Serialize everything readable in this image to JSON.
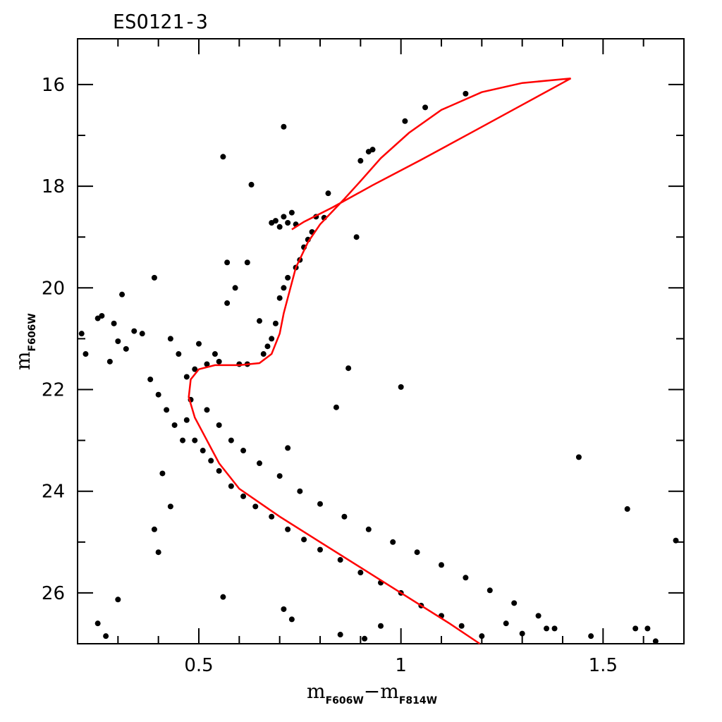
{
  "chart_data": {
    "type": "scatter",
    "title": "ESO121-3",
    "xlabel": {
      "main": "m",
      "sub1": "F606W",
      "sep": "−m",
      "sub2": "F814W"
    },
    "ylabel": {
      "main": "m",
      "sub": "F606W"
    },
    "xlim": [
      0.2,
      1.7
    ],
    "ylim": [
      27.0,
      15.1
    ],
    "y_inverted": true,
    "x_ticks": [
      0.5,
      1,
      1.5
    ],
    "x_tick_labels": [
      "0.5",
      "1",
      "1.5"
    ],
    "y_ticks": [
      16,
      18,
      20,
      22,
      24,
      26
    ],
    "y_tick_labels": [
      "16",
      "18",
      "20",
      "22",
      "24",
      "26"
    ],
    "grid": false,
    "legend": "none",
    "colors": {
      "points": "#000000",
      "isochrone": "#ff0000"
    },
    "series": [
      {
        "kind": "points",
        "points": [
          [
            1.16,
            16.18
          ],
          [
            1.06,
            16.45
          ],
          [
            1.01,
            16.72
          ],
          [
            0.71,
            16.83
          ],
          [
            0.56,
            17.42
          ],
          [
            0.93,
            17.28
          ],
          [
            0.92,
            17.32
          ],
          [
            0.9,
            17.5
          ],
          [
            0.63,
            17.97
          ],
          [
            0.82,
            18.14
          ],
          [
            0.73,
            18.52
          ],
          [
            0.71,
            18.6
          ],
          [
            0.69,
            18.68
          ],
          [
            0.72,
            18.72
          ],
          [
            0.74,
            18.75
          ],
          [
            0.7,
            18.8
          ],
          [
            0.68,
            18.72
          ],
          [
            0.79,
            18.6
          ],
          [
            0.81,
            18.62
          ],
          [
            0.78,
            18.9
          ],
          [
            0.77,
            19.05
          ],
          [
            0.76,
            19.2
          ],
          [
            0.75,
            19.45
          ],
          [
            0.74,
            19.6
          ],
          [
            0.72,
            19.8
          ],
          [
            0.71,
            20.0
          ],
          [
            0.7,
            20.2
          ],
          [
            0.89,
            19.0
          ],
          [
            0.57,
            19.5
          ],
          [
            0.62,
            19.5
          ],
          [
            0.59,
            20.0
          ],
          [
            0.57,
            20.3
          ],
          [
            0.39,
            19.8
          ],
          [
            0.31,
            20.13
          ],
          [
            0.65,
            20.65
          ],
          [
            0.69,
            20.7
          ],
          [
            0.68,
            21.0
          ],
          [
            0.67,
            21.15
          ],
          [
            0.66,
            21.3
          ],
          [
            0.62,
            21.5
          ],
          [
            0.6,
            21.5
          ],
          [
            0.55,
            21.45
          ],
          [
            0.52,
            21.5
          ],
          [
            0.49,
            21.6
          ],
          [
            0.47,
            21.75
          ],
          [
            0.21,
            20.9
          ],
          [
            0.22,
            21.3
          ],
          [
            0.25,
            20.6
          ],
          [
            0.28,
            21.45
          ],
          [
            0.32,
            21.2
          ],
          [
            0.36,
            20.9
          ],
          [
            0.29,
            20.7
          ],
          [
            0.26,
            20.55
          ],
          [
            0.34,
            20.85
          ],
          [
            0.3,
            21.05
          ],
          [
            0.38,
            21.8
          ],
          [
            0.4,
            22.1
          ],
          [
            0.42,
            22.4
          ],
          [
            0.44,
            22.7
          ],
          [
            0.46,
            23.0
          ],
          [
            0.45,
            21.3
          ],
          [
            0.43,
            21.0
          ],
          [
            0.5,
            21.1
          ],
          [
            0.54,
            21.3
          ],
          [
            0.48,
            22.2
          ],
          [
            0.47,
            22.6
          ],
          [
            0.49,
            23.0
          ],
          [
            0.51,
            23.2
          ],
          [
            0.53,
            23.4
          ],
          [
            0.55,
            23.6
          ],
          [
            0.58,
            23.9
          ],
          [
            0.61,
            24.1
          ],
          [
            0.64,
            24.3
          ],
          [
            0.68,
            24.5
          ],
          [
            0.72,
            24.75
          ],
          [
            0.76,
            24.95
          ],
          [
            0.8,
            25.15
          ],
          [
            0.85,
            25.35
          ],
          [
            0.9,
            25.6
          ],
          [
            0.95,
            25.8
          ],
          [
            1.0,
            26.0
          ],
          [
            1.05,
            26.25
          ],
          [
            1.1,
            26.45
          ],
          [
            1.15,
            26.65
          ],
          [
            1.2,
            26.85
          ],
          [
            0.52,
            22.4
          ],
          [
            0.55,
            22.7
          ],
          [
            0.58,
            23.0
          ],
          [
            0.61,
            23.2
          ],
          [
            0.65,
            23.45
          ],
          [
            0.7,
            23.7
          ],
          [
            0.75,
            24.0
          ],
          [
            0.8,
            24.25
          ],
          [
            0.86,
            24.5
          ],
          [
            0.92,
            24.75
          ],
          [
            0.98,
            25.0
          ],
          [
            1.04,
            25.2
          ],
          [
            1.1,
            25.45
          ],
          [
            1.16,
            25.7
          ],
          [
            1.22,
            25.95
          ],
          [
            1.28,
            26.2
          ],
          [
            1.34,
            26.45
          ],
          [
            1.38,
            26.7
          ],
          [
            0.87,
            21.58
          ],
          [
            1.0,
            21.95
          ],
          [
            0.84,
            22.35
          ],
          [
            0.72,
            23.15
          ],
          [
            1.44,
            23.33
          ],
          [
            1.56,
            24.35
          ],
          [
            1.68,
            24.97
          ],
          [
            0.41,
            23.65
          ],
          [
            0.43,
            24.3
          ],
          [
            0.39,
            24.75
          ],
          [
            0.4,
            25.2
          ],
          [
            0.56,
            26.08
          ],
          [
            0.3,
            26.13
          ],
          [
            0.71,
            26.32
          ],
          [
            0.25,
            26.6
          ],
          [
            0.27,
            26.85
          ],
          [
            0.73,
            26.52
          ],
          [
            1.58,
            26.7
          ],
          [
            1.61,
            26.7
          ],
          [
            1.63,
            26.95
          ],
          [
            1.47,
            26.85
          ],
          [
            1.36,
            26.7
          ],
          [
            1.3,
            26.8
          ],
          [
            1.26,
            26.6
          ],
          [
            0.91,
            26.9
          ],
          [
            0.85,
            26.82
          ],
          [
            0.95,
            26.65
          ]
        ]
      },
      {
        "kind": "isochrone",
        "points": [
          [
            1.195,
            27.0
          ],
          [
            1.12,
            26.6
          ],
          [
            1.0,
            26.0
          ],
          [
            0.9,
            25.5
          ],
          [
            0.8,
            25.0
          ],
          [
            0.7,
            24.5
          ],
          [
            0.6,
            23.95
          ],
          [
            0.55,
            23.45
          ],
          [
            0.52,
            23.0
          ],
          [
            0.49,
            22.55
          ],
          [
            0.475,
            22.15
          ],
          [
            0.48,
            21.8
          ],
          [
            0.5,
            21.6
          ],
          [
            0.54,
            21.52
          ],
          [
            0.6,
            21.52
          ],
          [
            0.65,
            21.48
          ],
          [
            0.68,
            21.3
          ],
          [
            0.7,
            20.9
          ],
          [
            0.71,
            20.5
          ],
          [
            0.72,
            20.2
          ],
          [
            0.74,
            19.6
          ],
          [
            0.77,
            19.1
          ],
          [
            0.8,
            18.75
          ],
          [
            0.83,
            18.5
          ],
          [
            0.86,
            18.25
          ],
          [
            0.9,
            17.9
          ],
          [
            0.95,
            17.45
          ],
          [
            1.02,
            16.95
          ],
          [
            1.1,
            16.5
          ],
          [
            1.2,
            16.15
          ],
          [
            1.3,
            15.97
          ],
          [
            1.42,
            15.88
          ],
          [
            1.3,
            16.4
          ],
          [
            1.18,
            16.92
          ],
          [
            1.05,
            17.48
          ],
          [
            0.93,
            17.98
          ],
          [
            0.83,
            18.42
          ],
          [
            0.76,
            18.7
          ],
          [
            0.73,
            18.85
          ]
        ]
      }
    ]
  }
}
